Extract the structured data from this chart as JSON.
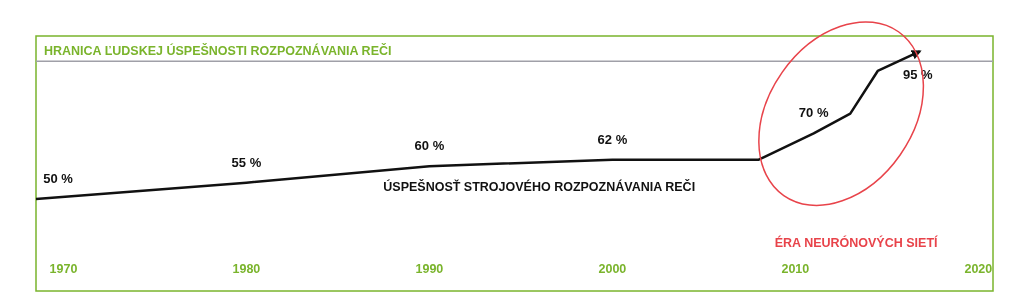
{
  "chart_data": {
    "type": "line",
    "x": [
      1968.5,
      1980,
      1990,
      2000,
      2008,
      2011,
      2013,
      2014.5,
      2016.8
    ],
    "series": [
      {
        "name": "ÚSPEŠNOSŤ STROJOVÉHO ROZPOZNÁVANIA REČI",
        "color": "#111111",
        "values": [
          50,
          55,
          60,
          62,
          62,
          70,
          76,
          89,
          95
        ],
        "value_labels": [
          "50 %",
          "55 %",
          "60 %",
          "62 %",
          null,
          "70 %",
          null,
          null,
          "95 %"
        ]
      }
    ],
    "xlim": [
      1968.5,
      2020.8
    ],
    "xticks": [
      1970,
      1980,
      1990,
      2000,
      2010,
      2020
    ],
    "tick_labels": "x",
    "grid": false,
    "marker": "none",
    "line_style": "solid",
    "ref_lines": [
      {
        "axis": "y",
        "value": 92,
        "label": "HRANICA ĽUDSKEJ ÚSPEŠNOSTI ROZPOZNÁVANIA REČI",
        "color": "#a0a0a8"
      }
    ],
    "annotations": [
      "ÉRA NEURÓNOVÝCH SIETÍ"
    ]
  }
}
